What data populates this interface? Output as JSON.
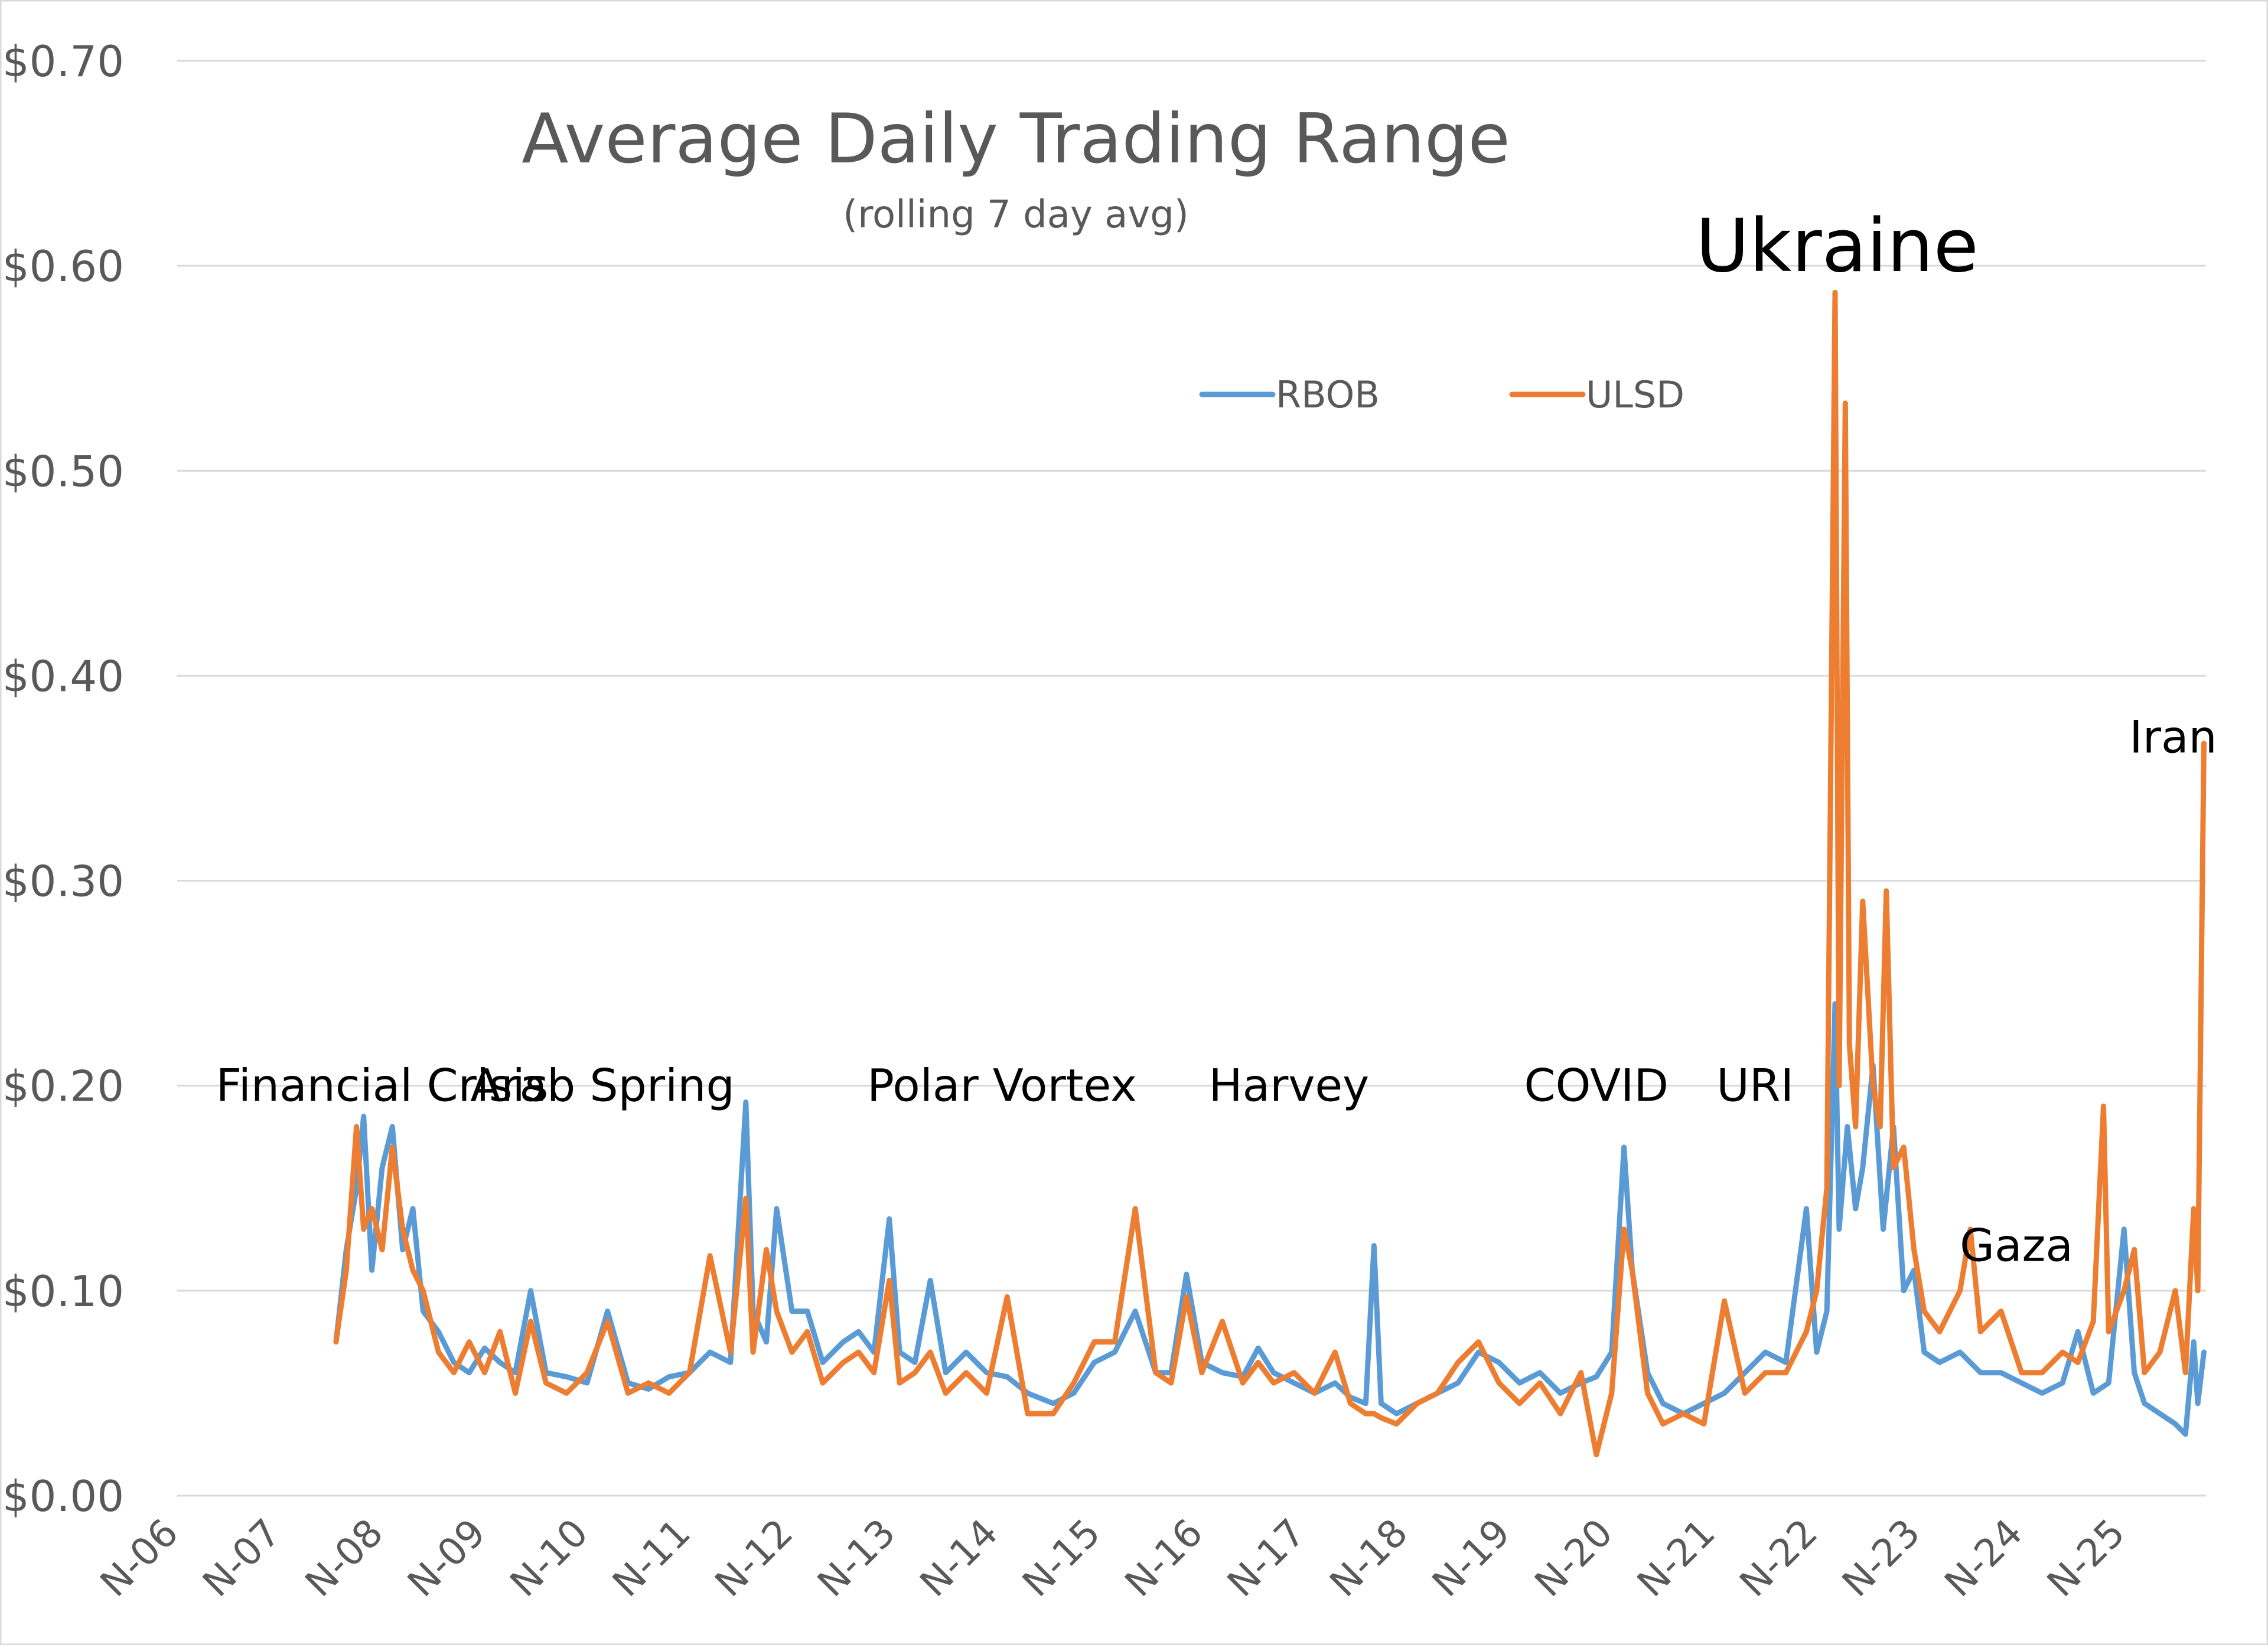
{
  "chart_data": {
    "type": "line",
    "title": "Average Daily Trading Range",
    "subtitle": "(rolling 7 day avg)",
    "xlabel": "",
    "ylabel": "",
    "ylim": [
      0,
      0.7
    ],
    "yticks": [
      {
        "value": 0.0,
        "label": "$0.00"
      },
      {
        "value": 0.1,
        "label": "$0.10"
      },
      {
        "value": 0.2,
        "label": "$0.20"
      },
      {
        "value": 0.3,
        "label": "$0.30"
      },
      {
        "value": 0.4,
        "label": "$0.40"
      },
      {
        "value": 0.5,
        "label": "$0.50"
      },
      {
        "value": 0.6,
        "label": "$0.60"
      },
      {
        "value": 0.7,
        "label": "$0.70"
      }
    ],
    "xlim": [
      2006.0,
      2025.8
    ],
    "xticks": [
      {
        "value": 2006,
        "label": "N-06"
      },
      {
        "value": 2007,
        "label": "N-07"
      },
      {
        "value": 2008,
        "label": "N-08"
      },
      {
        "value": 2009,
        "label": "N-09"
      },
      {
        "value": 2010,
        "label": "N-10"
      },
      {
        "value": 2011,
        "label": "N-11"
      },
      {
        "value": 2012,
        "label": "N-12"
      },
      {
        "value": 2013,
        "label": "N-13"
      },
      {
        "value": 2014,
        "label": "N-14"
      },
      {
        "value": 2015,
        "label": "N-15"
      },
      {
        "value": 2016,
        "label": "N-16"
      },
      {
        "value": 2017,
        "label": "N-17"
      },
      {
        "value": 2018,
        "label": "N-18"
      },
      {
        "value": 2019,
        "label": "N-19"
      },
      {
        "value": 2020,
        "label": "N-20"
      },
      {
        "value": 2021,
        "label": "N-21"
      },
      {
        "value": 2022,
        "label": "N-22"
      },
      {
        "value": 2023,
        "label": "N-23"
      },
      {
        "value": 2024,
        "label": "N-24"
      },
      {
        "value": 2025,
        "label": "N-25"
      }
    ],
    "grid": true,
    "legend_position": "top-center",
    "series": [
      {
        "name": "RBOB",
        "color": "#5B9BD5",
        "points": [
          [
            2007.55,
            0.075
          ],
          [
            2007.65,
            0.12
          ],
          [
            2007.75,
            0.15
          ],
          [
            2007.82,
            0.185
          ],
          [
            2007.9,
            0.11
          ],
          [
            2008.0,
            0.16
          ],
          [
            2008.1,
            0.18
          ],
          [
            2008.2,
            0.12
          ],
          [
            2008.3,
            0.14
          ],
          [
            2008.4,
            0.09
          ],
          [
            2008.55,
            0.08
          ],
          [
            2008.7,
            0.065
          ],
          [
            2008.85,
            0.06
          ],
          [
            2009.0,
            0.072
          ],
          [
            2009.15,
            0.065
          ],
          [
            2009.3,
            0.06
          ],
          [
            2009.45,
            0.1
          ],
          [
            2009.6,
            0.06
          ],
          [
            2009.8,
            0.058
          ],
          [
            2010.0,
            0.055
          ],
          [
            2010.2,
            0.09
          ],
          [
            2010.4,
            0.055
          ],
          [
            2010.6,
            0.052
          ],
          [
            2010.8,
            0.058
          ],
          [
            2011.0,
            0.06
          ],
          [
            2011.2,
            0.07
          ],
          [
            2011.4,
            0.065
          ],
          [
            2011.55,
            0.192
          ],
          [
            2011.62,
            0.09
          ],
          [
            2011.75,
            0.075
          ],
          [
            2011.85,
            0.14
          ],
          [
            2012.0,
            0.09
          ],
          [
            2012.15,
            0.09
          ],
          [
            2012.3,
            0.065
          ],
          [
            2012.5,
            0.075
          ],
          [
            2012.65,
            0.08
          ],
          [
            2012.8,
            0.07
          ],
          [
            2012.95,
            0.135
          ],
          [
            2013.05,
            0.07
          ],
          [
            2013.2,
            0.065
          ],
          [
            2013.35,
            0.105
          ],
          [
            2013.5,
            0.06
          ],
          [
            2013.7,
            0.07
          ],
          [
            2013.9,
            0.06
          ],
          [
            2014.1,
            0.058
          ],
          [
            2014.3,
            0.05
          ],
          [
            2014.55,
            0.045
          ],
          [
            2014.75,
            0.05
          ],
          [
            2014.95,
            0.065
          ],
          [
            2015.15,
            0.07
          ],
          [
            2015.35,
            0.09
          ],
          [
            2015.55,
            0.06
          ],
          [
            2015.7,
            0.06
          ],
          [
            2015.85,
            0.108
          ],
          [
            2016.0,
            0.065
          ],
          [
            2016.2,
            0.06
          ],
          [
            2016.4,
            0.058
          ],
          [
            2016.55,
            0.072
          ],
          [
            2016.7,
            0.06
          ],
          [
            2016.9,
            0.055
          ],
          [
            2017.1,
            0.05
          ],
          [
            2017.3,
            0.055
          ],
          [
            2017.45,
            0.048
          ],
          [
            2017.6,
            0.045
          ],
          [
            2017.68,
            0.122
          ],
          [
            2017.75,
            0.045
          ],
          [
            2017.9,
            0.04
          ],
          [
            2018.1,
            0.045
          ],
          [
            2018.3,
            0.05
          ],
          [
            2018.5,
            0.055
          ],
          [
            2018.7,
            0.07
          ],
          [
            2018.9,
            0.065
          ],
          [
            2019.1,
            0.055
          ],
          [
            2019.3,
            0.06
          ],
          [
            2019.5,
            0.05
          ],
          [
            2019.7,
            0.055
          ],
          [
            2019.85,
            0.058
          ],
          [
            2020.0,
            0.07
          ],
          [
            2020.12,
            0.17
          ],
          [
            2020.2,
            0.11
          ],
          [
            2020.35,
            0.06
          ],
          [
            2020.5,
            0.045
          ],
          [
            2020.7,
            0.04
          ],
          [
            2020.9,
            0.045
          ],
          [
            2021.1,
            0.05
          ],
          [
            2021.3,
            0.06
          ],
          [
            2021.5,
            0.07
          ],
          [
            2021.7,
            0.065
          ],
          [
            2021.9,
            0.14
          ],
          [
            2022.0,
            0.07
          ],
          [
            2022.1,
            0.09
          ],
          [
            2022.18,
            0.24
          ],
          [
            2022.22,
            0.13
          ],
          [
            2022.3,
            0.18
          ],
          [
            2022.38,
            0.14
          ],
          [
            2022.45,
            0.16
          ],
          [
            2022.55,
            0.21
          ],
          [
            2022.65,
            0.13
          ],
          [
            2022.75,
            0.18
          ],
          [
            2022.85,
            0.1
          ],
          [
            2022.95,
            0.11
          ],
          [
            2023.05,
            0.07
          ],
          [
            2023.2,
            0.065
          ],
          [
            2023.4,
            0.07
          ],
          [
            2023.6,
            0.06
          ],
          [
            2023.8,
            0.06
          ],
          [
            2024.0,
            0.055
          ],
          [
            2024.2,
            0.05
          ],
          [
            2024.4,
            0.055
          ],
          [
            2024.55,
            0.08
          ],
          [
            2024.7,
            0.05
          ],
          [
            2024.85,
            0.055
          ],
          [
            2025.0,
            0.13
          ],
          [
            2025.1,
            0.06
          ],
          [
            2025.2,
            0.045
          ],
          [
            2025.35,
            0.04
          ],
          [
            2025.5,
            0.035
          ],
          [
            2025.6,
            0.03
          ],
          [
            2025.68,
            0.075
          ],
          [
            2025.72,
            0.045
          ],
          [
            2025.78,
            0.07
          ]
        ]
      },
      {
        "name": "ULSD",
        "color": "#ED7D31",
        "points": [
          [
            2007.55,
            0.075
          ],
          [
            2007.65,
            0.11
          ],
          [
            2007.75,
            0.18
          ],
          [
            2007.82,
            0.13
          ],
          [
            2007.9,
            0.14
          ],
          [
            2008.0,
            0.12
          ],
          [
            2008.1,
            0.17
          ],
          [
            2008.2,
            0.13
          ],
          [
            2008.3,
            0.11
          ],
          [
            2008.4,
            0.1
          ],
          [
            2008.55,
            0.07
          ],
          [
            2008.7,
            0.06
          ],
          [
            2008.85,
            0.075
          ],
          [
            2009.0,
            0.06
          ],
          [
            2009.15,
            0.08
          ],
          [
            2009.3,
            0.05
          ],
          [
            2009.45,
            0.085
          ],
          [
            2009.6,
            0.055
          ],
          [
            2009.8,
            0.05
          ],
          [
            2010.0,
            0.06
          ],
          [
            2010.2,
            0.085
          ],
          [
            2010.4,
            0.05
          ],
          [
            2010.6,
            0.055
          ],
          [
            2010.8,
            0.05
          ],
          [
            2011.0,
            0.06
          ],
          [
            2011.2,
            0.117
          ],
          [
            2011.4,
            0.07
          ],
          [
            2011.55,
            0.145
          ],
          [
            2011.62,
            0.07
          ],
          [
            2011.75,
            0.12
          ],
          [
            2011.85,
            0.09
          ],
          [
            2012.0,
            0.07
          ],
          [
            2012.15,
            0.08
          ],
          [
            2012.3,
            0.055
          ],
          [
            2012.5,
            0.065
          ],
          [
            2012.65,
            0.07
          ],
          [
            2012.8,
            0.06
          ],
          [
            2012.95,
            0.105
          ],
          [
            2013.05,
            0.055
          ],
          [
            2013.2,
            0.06
          ],
          [
            2013.35,
            0.07
          ],
          [
            2013.5,
            0.05
          ],
          [
            2013.7,
            0.06
          ],
          [
            2013.9,
            0.05
          ],
          [
            2014.1,
            0.097
          ],
          [
            2014.3,
            0.04
          ],
          [
            2014.55,
            0.04
          ],
          [
            2014.75,
            0.055
          ],
          [
            2014.95,
            0.075
          ],
          [
            2015.15,
            0.075
          ],
          [
            2015.35,
            0.14
          ],
          [
            2015.55,
            0.06
          ],
          [
            2015.7,
            0.055
          ],
          [
            2015.85,
            0.097
          ],
          [
            2016.0,
            0.06
          ],
          [
            2016.2,
            0.085
          ],
          [
            2016.4,
            0.055
          ],
          [
            2016.55,
            0.065
          ],
          [
            2016.7,
            0.055
          ],
          [
            2016.9,
            0.06
          ],
          [
            2017.1,
            0.05
          ],
          [
            2017.3,
            0.07
          ],
          [
            2017.45,
            0.045
          ],
          [
            2017.6,
            0.04
          ],
          [
            2017.68,
            0.04
          ],
          [
            2017.75,
            0.038
          ],
          [
            2017.9,
            0.035
          ],
          [
            2018.1,
            0.045
          ],
          [
            2018.3,
            0.05
          ],
          [
            2018.5,
            0.065
          ],
          [
            2018.7,
            0.075
          ],
          [
            2018.9,
            0.055
          ],
          [
            2019.1,
            0.045
          ],
          [
            2019.3,
            0.055
          ],
          [
            2019.5,
            0.04
          ],
          [
            2019.7,
            0.06
          ],
          [
            2019.85,
            0.02
          ],
          [
            2020.0,
            0.05
          ],
          [
            2020.12,
            0.13
          ],
          [
            2020.2,
            0.11
          ],
          [
            2020.35,
            0.05
          ],
          [
            2020.5,
            0.035
          ],
          [
            2020.7,
            0.04
          ],
          [
            2020.9,
            0.035
          ],
          [
            2021.1,
            0.095
          ],
          [
            2021.3,
            0.05
          ],
          [
            2021.5,
            0.06
          ],
          [
            2021.7,
            0.06
          ],
          [
            2021.9,
            0.08
          ],
          [
            2022.0,
            0.1
          ],
          [
            2022.1,
            0.15
          ],
          [
            2022.18,
            0.587
          ],
          [
            2022.22,
            0.2
          ],
          [
            2022.28,
            0.533
          ],
          [
            2022.32,
            0.22
          ],
          [
            2022.38,
            0.18
          ],
          [
            2022.45,
            0.29
          ],
          [
            2022.55,
            0.2
          ],
          [
            2022.62,
            0.18
          ],
          [
            2022.68,
            0.295
          ],
          [
            2022.75,
            0.16
          ],
          [
            2022.85,
            0.17
          ],
          [
            2022.95,
            0.12
          ],
          [
            2023.05,
            0.09
          ],
          [
            2023.2,
            0.08
          ],
          [
            2023.4,
            0.1
          ],
          [
            2023.5,
            0.13
          ],
          [
            2023.6,
            0.08
          ],
          [
            2023.8,
            0.09
          ],
          [
            2024.0,
            0.06
          ],
          [
            2024.2,
            0.06
          ],
          [
            2024.4,
            0.07
          ],
          [
            2024.55,
            0.065
          ],
          [
            2024.7,
            0.085
          ],
          [
            2024.8,
            0.19
          ],
          [
            2024.85,
            0.08
          ],
          [
            2025.0,
            0.1
          ],
          [
            2025.1,
            0.12
          ],
          [
            2025.2,
            0.06
          ],
          [
            2025.35,
            0.07
          ],
          [
            2025.5,
            0.1
          ],
          [
            2025.6,
            0.06
          ],
          [
            2025.68,
            0.14
          ],
          [
            2025.72,
            0.1
          ],
          [
            2025.78,
            0.367
          ]
        ]
      }
    ],
    "annotations": [
      {
        "text": "Financial Crisis",
        "x": 2008.0,
        "y": 0.2,
        "size": "normal"
      },
      {
        "text": "Arab Spring",
        "x": 2010.15,
        "y": 0.2,
        "size": "normal"
      },
      {
        "text": "Polar Vortex",
        "x": 2014.05,
        "y": 0.2,
        "size": "normal"
      },
      {
        "text": "Harvey",
        "x": 2016.85,
        "y": 0.2,
        "size": "normal"
      },
      {
        "text": "COVID",
        "x": 2019.85,
        "y": 0.2,
        "size": "normal"
      },
      {
        "text": "URI",
        "x": 2021.4,
        "y": 0.2,
        "size": "normal"
      },
      {
        "text": "Ukraine",
        "x": 2022.2,
        "y": 0.605,
        "size": "large"
      },
      {
        "text": "Gaza",
        "x": 2023.95,
        "y": 0.122,
        "size": "normal"
      },
      {
        "text": "Iran",
        "x": 2025.48,
        "y": 0.37,
        "size": "normal"
      }
    ]
  }
}
